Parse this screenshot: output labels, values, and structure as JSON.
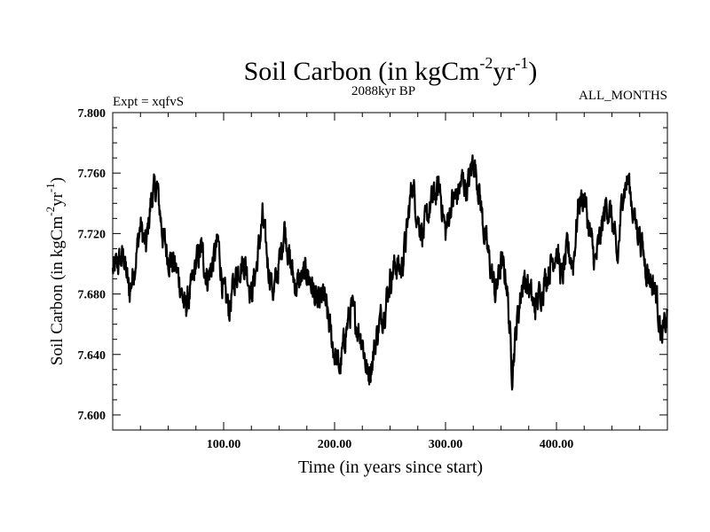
{
  "chart_data": {
    "type": "line",
    "title": {
      "main": "Soil Carbon (in kgCm",
      "sup1": "-2",
      "mid": "yr",
      "sup2": "-1",
      "end": ")"
    },
    "subtitle": "2088kyr BP",
    "left_annotation": "Expt = xqfvS",
    "right_annotation": "ALL_MONTHS",
    "xlabel": "Time (in years since start)",
    "ylabel": {
      "main": "Soil Carbon (in kgCm",
      "sup1": "-2",
      "mid": "yr",
      "sup2": "-1",
      "end": ")"
    },
    "xlim": [
      0,
      500
    ],
    "ylim": [
      7.59,
      7.8
    ],
    "x_ticks": [
      100,
      200,
      300,
      400
    ],
    "x_tick_labels": [
      "100.00",
      "200.00",
      "300.00",
      "400.00"
    ],
    "y_ticks": [
      7.6,
      7.64,
      7.68,
      7.72,
      7.76,
      7.8
    ],
    "y_tick_labels": [
      "7.600",
      "7.640",
      "7.680",
      "7.720",
      "7.760",
      "7.800"
    ],
    "series": [
      {
        "name": "Soil Carbon",
        "color": "#000000",
        "x": [
          0,
          5,
          10,
          15,
          20,
          25,
          30,
          35,
          40,
          45,
          50,
          55,
          60,
          65,
          70,
          75,
          80,
          85,
          90,
          95,
          100,
          105,
          110,
          115,
          120,
          125,
          130,
          135,
          140,
          145,
          150,
          155,
          160,
          165,
          170,
          175,
          180,
          185,
          190,
          195,
          200,
          205,
          210,
          215,
          220,
          225,
          230,
          235,
          240,
          245,
          250,
          255,
          260,
          265,
          270,
          275,
          280,
          285,
          290,
          295,
          300,
          305,
          310,
          315,
          320,
          325,
          330,
          335,
          340,
          345,
          350,
          355,
          360,
          365,
          370,
          375,
          380,
          385,
          390,
          395,
          400,
          405,
          410,
          415,
          420,
          425,
          430,
          435,
          440,
          445,
          450,
          455,
          460,
          465,
          470,
          475,
          480,
          485,
          490,
          495,
          500
        ],
        "values": [
          7.695,
          7.7,
          7.705,
          7.68,
          7.7,
          7.725,
          7.71,
          7.745,
          7.75,
          7.72,
          7.705,
          7.7,
          7.69,
          7.67,
          7.68,
          7.7,
          7.71,
          7.69,
          7.7,
          7.715,
          7.68,
          7.67,
          7.69,
          7.7,
          7.7,
          7.68,
          7.7,
          7.73,
          7.7,
          7.68,
          7.7,
          7.725,
          7.7,
          7.685,
          7.69,
          7.695,
          7.685,
          7.67,
          7.68,
          7.66,
          7.64,
          7.63,
          7.655,
          7.67,
          7.66,
          7.65,
          7.625,
          7.64,
          7.66,
          7.67,
          7.69,
          7.7,
          7.695,
          7.72,
          7.755,
          7.73,
          7.72,
          7.735,
          7.745,
          7.75,
          7.72,
          7.74,
          7.745,
          7.755,
          7.75,
          7.77,
          7.75,
          7.72,
          7.7,
          7.68,
          7.7,
          7.69,
          7.63,
          7.665,
          7.69,
          7.685,
          7.67,
          7.68,
          7.69,
          7.7,
          7.71,
          7.69,
          7.71,
          7.7,
          7.74,
          7.745,
          7.72,
          7.7,
          7.72,
          7.74,
          7.73,
          7.7,
          7.75,
          7.755,
          7.73,
          7.72,
          7.7,
          7.69,
          7.68,
          7.65,
          7.665
        ]
      }
    ]
  }
}
